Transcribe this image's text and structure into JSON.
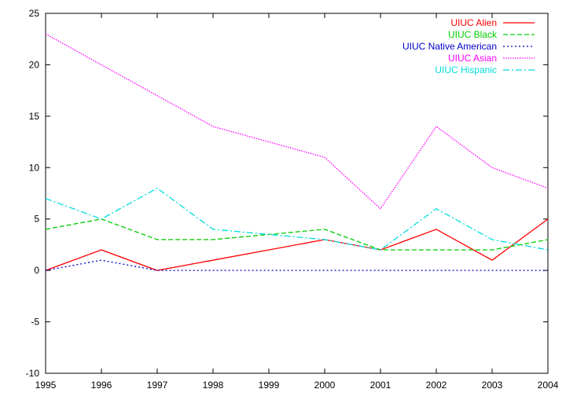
{
  "chart_data": {
    "type": "line",
    "title": "",
    "xlabel": "",
    "ylabel": "",
    "x": [
      1995,
      1996,
      1997,
      1998,
      1999,
      2000,
      2001,
      2002,
      2003,
      2004
    ],
    "xlim": [
      1995,
      2004
    ],
    "ylim": [
      -10,
      25
    ],
    "xticks": [
      "1995",
      "1996",
      "1997",
      "1998",
      "1999",
      "2000",
      "2001",
      "2002",
      "2003",
      "2004"
    ],
    "yticks": [
      "-10",
      "-5",
      "0",
      "5",
      "10",
      "15",
      "20",
      "25"
    ],
    "grid": false,
    "legend_position": "top-right",
    "series": [
      {
        "name": "UIUC Alien",
        "color": "#ff0000",
        "dash": "solid",
        "values": [
          0,
          2,
          0,
          1,
          2,
          3,
          2,
          4,
          1,
          5
        ]
      },
      {
        "name": "UIUC Black",
        "color": "#00cc00",
        "dash": "dashed",
        "values": [
          4,
          5,
          3,
          3,
          3.5,
          4,
          2,
          2,
          2,
          3
        ]
      },
      {
        "name": "UIUC Native American",
        "color": "#0000cc",
        "dash": "dotted",
        "values": [
          0,
          1,
          0,
          0,
          0,
          0,
          0,
          0,
          0,
          0
        ]
      },
      {
        "name": "UIUC Asian",
        "color": "#ff00ff",
        "dash": "dotted-fine",
        "values": [
          23,
          20,
          17,
          14,
          12.5,
          11,
          6,
          14,
          10,
          8
        ]
      },
      {
        "name": "UIUC Hispanic",
        "color": "#00dddd",
        "dash": "dashdot",
        "values": [
          7,
          5,
          8,
          4,
          3.5,
          3,
          2,
          6,
          3,
          2
        ]
      }
    ]
  }
}
